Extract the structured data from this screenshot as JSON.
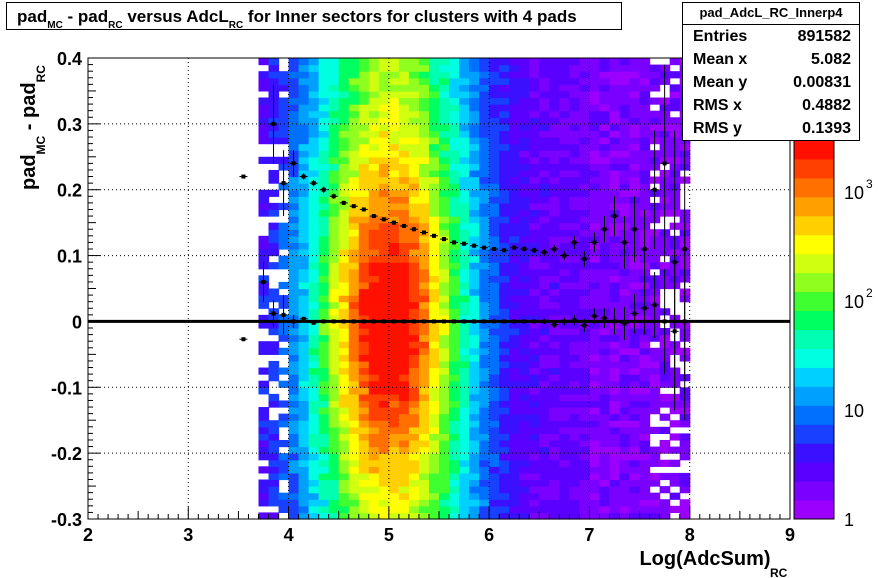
{
  "title": {
    "parts": [
      {
        "t": "pad"
      },
      {
        "s": "MC"
      },
      {
        "t": " - pad"
      },
      {
        "s": "RC"
      },
      {
        "t": " versus AdcL"
      },
      {
        "s": "RC"
      },
      {
        "t": " for Inner sectors for clusters with 4 pads"
      }
    ]
  },
  "stats": {
    "name": "pad_AdcL_RC_Innerp4",
    "rows": [
      {
        "label": "Entries",
        "value": "891582"
      },
      {
        "label": "Mean x",
        "value": "5.082"
      },
      {
        "label": "Mean y",
        "value": "0.00831"
      },
      {
        "label": "RMS x",
        "value": "0.4882"
      },
      {
        "label": "RMS y",
        "value": "0.1393"
      }
    ]
  },
  "chart_data": {
    "type": "heatmap",
    "xlabel": "Log(AdcSum)",
    "xlabel_sub": "RC",
    "ylabel": "pad",
    "ylabel_sub1": "MC",
    "ylabel_mid": " - pad",
    "ylabel_sub2": "RC",
    "xlim": [
      2,
      9
    ],
    "ylim": [
      -0.3,
      0.4
    ],
    "xticks": [
      "2",
      "3",
      "4",
      "5",
      "6",
      "7",
      "8",
      "9"
    ],
    "yticks": [
      "-0.3",
      "-0.2",
      "-0.1",
      "0",
      "0.1",
      "0.2",
      "0.3",
      "0.4"
    ],
    "grid": true,
    "colorbar": {
      "scale": "log",
      "labels": [
        "1",
        "10",
        "10^2",
        "10^3"
      ]
    },
    "density_model": {
      "x_mean": 5.0,
      "x_sigma": 0.55,
      "y_sigma": 0.16,
      "x_min": 3.7,
      "x_max": 8.0
    },
    "profile_upper": {
      "x": [
        3.55,
        3.75,
        3.85,
        3.95,
        4.05,
        4.15,
        4.25,
        4.35,
        4.45,
        4.55,
        4.65,
        4.75,
        4.85,
        4.95,
        5.05,
        5.15,
        5.25,
        5.35,
        5.45,
        5.55,
        5.65,
        5.75,
        5.85,
        5.95,
        6.05,
        6.15,
        6.25,
        6.35,
        6.45,
        6.55,
        6.65,
        6.75,
        6.85,
        6.95,
        7.05,
        7.15,
        7.25,
        7.35,
        7.45,
        7.55,
        7.65,
        7.75,
        7.85,
        7.95
      ],
      "y": [
        0.22,
        0.06,
        0.3,
        0.21,
        0.24,
        0.22,
        0.21,
        0.2,
        0.19,
        0.18,
        0.175,
        0.17,
        0.16,
        0.155,
        0.15,
        0.145,
        0.14,
        0.135,
        0.13,
        0.125,
        0.12,
        0.118,
        0.115,
        0.112,
        0.11,
        0.108,
        0.112,
        0.11,
        0.108,
        0.105,
        0.11,
        0.1,
        0.12,
        0.095,
        0.12,
        0.14,
        0.16,
        0.12,
        0.14,
        0.11,
        0.2,
        0.24,
        0.09,
        0.11
      ],
      "err": [
        0.0,
        0.03,
        0.06,
        0.05,
        0.02,
        0.005,
        0.005,
        0.005,
        0.004,
        0.003,
        0.003,
        0.003,
        0.003,
        0.003,
        0.003,
        0.003,
        0.003,
        0.003,
        0.003,
        0.003,
        0.003,
        0.003,
        0.003,
        0.003,
        0.003,
        0.003,
        0.003,
        0.004,
        0.004,
        0.005,
        0.006,
        0.007,
        0.01,
        0.012,
        0.015,
        0.02,
        0.03,
        0.04,
        0.05,
        0.06,
        0.09,
        0.15,
        0.2,
        0.2
      ]
    },
    "profile_lower": {
      "x": [
        3.55,
        3.85,
        3.95,
        4.05,
        4.15,
        4.25,
        4.35,
        4.45,
        4.55,
        4.65,
        4.75,
        4.85,
        4.95,
        5.05,
        5.15,
        5.25,
        5.35,
        5.45,
        5.55,
        5.65,
        5.75,
        5.85,
        5.95,
        6.05,
        6.15,
        6.25,
        6.35,
        6.45,
        6.55,
        6.65,
        6.75,
        6.85,
        6.95,
        7.05,
        7.15,
        7.25,
        7.35,
        7.45,
        7.55,
        7.65,
        7.75,
        7.85,
        7.95
      ],
      "y": [
        -0.027,
        0.012,
        0.01,
        0.0,
        0.004,
        -0.002,
        0.0,
        0.0,
        0.0,
        0.0,
        0.0,
        0.0,
        0.0,
        0.0,
        0.0,
        0.0,
        0.0,
        0.0,
        0.0,
        0.0,
        0.0,
        0.0,
        0.0,
        0.0,
        0.0,
        0.0,
        0.0,
        0.0,
        0.0,
        -0.005,
        0.0,
        0.002,
        -0.006,
        0.008,
        0.005,
        0.0,
        -0.003,
        0.012,
        0.02,
        0.025,
        0.0,
        -0.015,
        0.0
      ],
      "err": [
        0.0,
        0.02,
        0.03,
        0.01,
        0.003,
        0.002,
        0.002,
        0.002,
        0.002,
        0.002,
        0.002,
        0.002,
        0.002,
        0.002,
        0.002,
        0.002,
        0.002,
        0.002,
        0.002,
        0.002,
        0.002,
        0.002,
        0.002,
        0.002,
        0.002,
        0.002,
        0.003,
        0.003,
        0.004,
        0.005,
        0.006,
        0.008,
        0.01,
        0.012,
        0.015,
        0.02,
        0.025,
        0.03,
        0.04,
        0.05,
        0.08,
        0.12,
        0.15
      ]
    },
    "reference_line_y": 0.0
  },
  "colors": {
    "palette": [
      "#9b00ff",
      "#7a00ff",
      "#5a00ff",
      "#3a10ff",
      "#1a40ff",
      "#0070ff",
      "#00a0ff",
      "#00d0ff",
      "#00ffe0",
      "#00ffb0",
      "#00ff60",
      "#40ff30",
      "#90ff20",
      "#d0ff10",
      "#ffff00",
      "#ffd000",
      "#ffa000",
      "#ff7000",
      "#ff4000",
      "#ff1000"
    ]
  }
}
